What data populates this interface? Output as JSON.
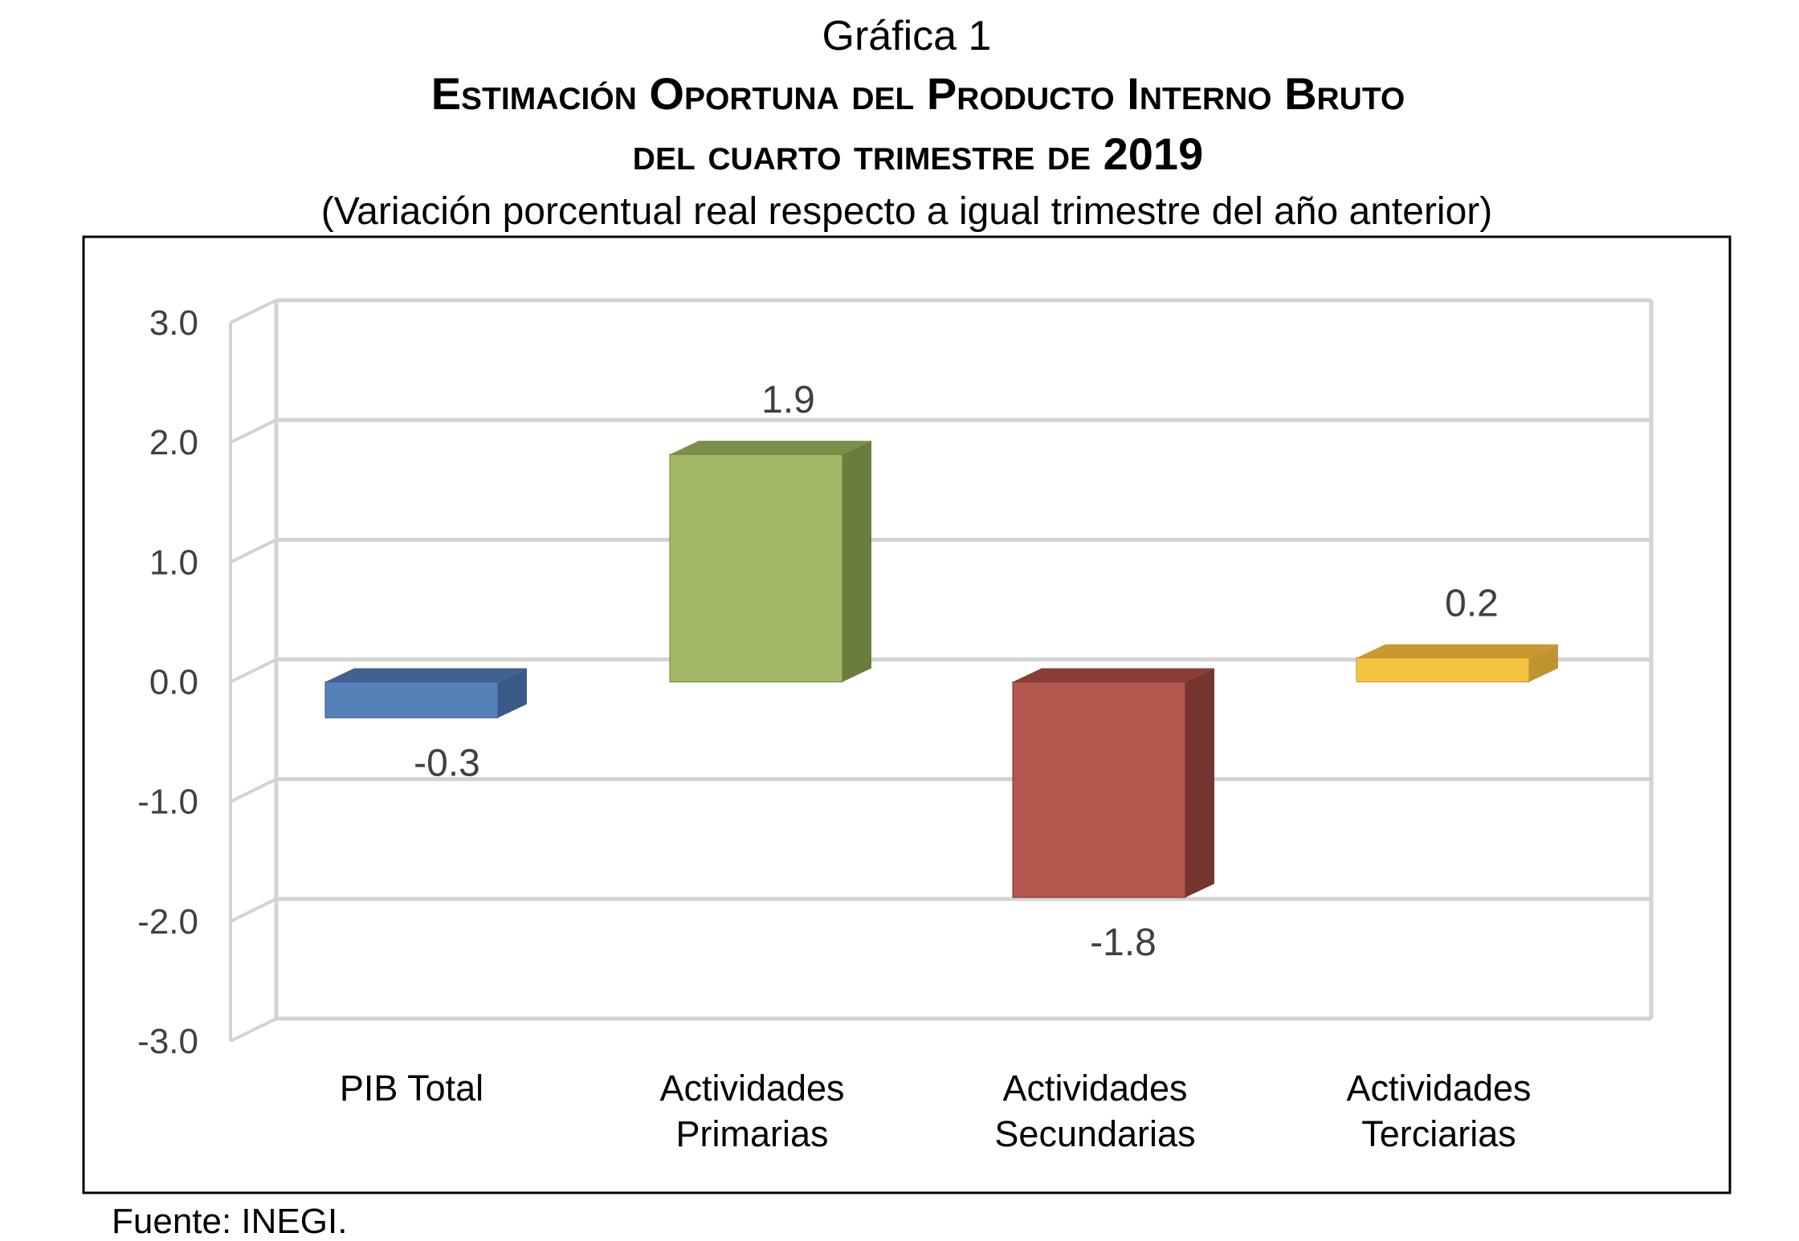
{
  "chart_data": {
    "type": "bar",
    "label": "Gráfica 1",
    "title": "Estimación Oportuna del Producto Interno Bruto",
    "title_line2": "del cuarto trimestre de 2019",
    "subtitle": "(Variación porcentual real respecto a igual trimestre del año anterior)",
    "categories": [
      [
        "PIB Total"
      ],
      [
        "Actividades",
        "Primarias"
      ],
      [
        "Actividades",
        "Secundarias"
      ],
      [
        "Actividades",
        "Terciarias"
      ]
    ],
    "values": [
      -0.3,
      1.9,
      -1.8,
      0.2
    ],
    "data_labels": [
      "-0.3",
      "1.9",
      "-1.8",
      "0.2"
    ],
    "colors": [
      "#5580b8",
      "#a3b867",
      "#b3574f",
      "#f5c242"
    ],
    "side_colors": [
      "#3b5a87",
      "#6b7d3d",
      "#773530",
      "#bf9430"
    ],
    "top_colors": [
      "#41628f",
      "#7c8f4a",
      "#8a3d37",
      "#c9992f"
    ],
    "yticks": [
      "3.0",
      "2.0",
      "1.0",
      "0.0",
      "-1.0",
      "-2.0",
      "-3.0"
    ],
    "ylim": [
      -3,
      3
    ],
    "grid": true,
    "xlabel": "",
    "ylabel": "",
    "source": "Fuente: INEGI."
  }
}
